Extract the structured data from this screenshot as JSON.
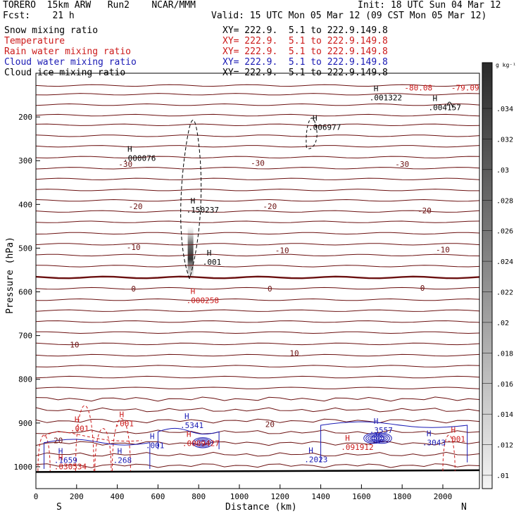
{
  "header": {
    "model_line": "TORERO  15km ARW   Run2    NCAR/MMM",
    "init": "Init: 18 UTC Sun 04 Mar 12",
    "fcst": "Fcst:    21 h",
    "valid": "Valid: 15 UTC Mon 05 Mar 12 (09 CST Mon 05 Mar 12)"
  },
  "legend": [
    {
      "name": "Snow mixing ratio",
      "color": "#000000",
      "xy": "XY= 222.9.  5.1 to 222.9.149.8"
    },
    {
      "name": "Temperature",
      "color": "#cc1a1a",
      "xy": "XY= 222.9.  5.1 to 222.9.149.8"
    },
    {
      "name": "Rain water mixing ratio",
      "color": "#cc1a1a",
      "xy": "XY= 222.9.  5.1 to 222.9.149.8"
    },
    {
      "name": "Cloud water mixing ratio",
      "color": "#1a1ab4",
      "xy": "XY= 222.9.  5.1 to 222.9.149.8"
    },
    {
      "name": "Cloud ice mixing ratio",
      "color": "#000000",
      "xy": "XY= 222.9.  5.1 to 222.9.149.8"
    }
  ],
  "chart_data": {
    "type": "contour",
    "xlabel": "Distance (km)",
    "ylabel": "Pressure (hPa)",
    "xlim": [
      0,
      2180
    ],
    "ylim": [
      1050,
      100
    ],
    "x_ticks": [
      0,
      200,
      400,
      600,
      800,
      1000,
      1200,
      1400,
      1600,
      1800,
      2000
    ],
    "y_ticks": [
      200,
      300,
      400,
      500,
      600,
      700,
      800,
      900,
      1000
    ],
    "x_end_labels": [
      "S",
      "N"
    ],
    "colorbar": {
      "unit": "g kg⁻¹",
      "labels": [
        ".034",
        ".032",
        ".03",
        ".028",
        ".026",
        ".024",
        ".022",
        ".02",
        ".018",
        ".016",
        ".014",
        ".012",
        ".01"
      ]
    },
    "temperature_labels": [
      {
        "text": "-80.08",
        "x": 1880,
        "p": 133,
        "color": "#cc1a1a"
      },
      {
        "text": "-79.09",
        "x": 2110,
        "p": 133,
        "color": "#cc1a1a"
      },
      {
        "text": "-30",
        "x": 440,
        "p": 308,
        "color": "#6b1010"
      },
      {
        "text": "-30",
        "x": 1090,
        "p": 305,
        "color": "#6b1010"
      },
      {
        "text": "-30",
        "x": 1800,
        "p": 308,
        "color": "#6b1010"
      },
      {
        "text": "-20",
        "x": 490,
        "p": 404,
        "color": "#6b1010"
      },
      {
        "text": "-20",
        "x": 1150,
        "p": 404,
        "color": "#6b1010"
      },
      {
        "text": "-20",
        "x": 1910,
        "p": 414,
        "color": "#6b1010"
      },
      {
        "text": "-10",
        "x": 480,
        "p": 498,
        "color": "#6b1010"
      },
      {
        "text": "-10",
        "x": 1210,
        "p": 505,
        "color": "#6b1010"
      },
      {
        "text": "-10",
        "x": 2000,
        "p": 503,
        "color": "#6b1010"
      },
      {
        "text": "0",
        "x": 480,
        "p": 593,
        "color": "#6b1010"
      },
      {
        "text": "0",
        "x": 1150,
        "p": 593,
        "color": "#6b1010"
      },
      {
        "text": "0",
        "x": 1900,
        "p": 591,
        "color": "#6b1010"
      },
      {
        "text": "10",
        "x": 190,
        "p": 721,
        "color": "#6b1010"
      },
      {
        "text": "10",
        "x": 1270,
        "p": 740,
        "color": "#6b1010"
      },
      {
        "text": "20",
        "x": 110,
        "p": 940,
        "color": "#6b1010"
      },
      {
        "text": "20",
        "x": 1150,
        "p": 903,
        "color": "#6b1010"
      }
    ],
    "highs": [
      {
        "value": ".001322",
        "x": 1660,
        "p": 160,
        "color": "#000000"
      },
      {
        "value": ".004157",
        "x": 1950,
        "p": 183,
        "color": "#000000"
      },
      {
        "value": ".006977",
        "x": 1360,
        "p": 228,
        "color": "#000000"
      },
      {
        "value": ".000076",
        "x": 450,
        "p": 299,
        "color": "#000000"
      },
      {
        "value": ".150237",
        "x": 760,
        "p": 417,
        "color": "#000000"
      },
      {
        "value": ".001",
        "x": 840,
        "p": 536,
        "color": "#000000"
      },
      {
        "value": ".000258",
        "x": 760,
        "p": 624,
        "color": "#cc1a1a"
      },
      {
        "value": ".5341",
        "x": 730,
        "p": 910,
        "color": "#1a1ab4"
      },
      {
        "value": ".0009427",
        "x": 740,
        "p": 951,
        "color": "#cc1a1a"
      },
      {
        "value": ".001",
        "x": 190,
        "p": 917,
        "color": "#cc1a1a"
      },
      {
        "value": ".001",
        "x": 410,
        "p": 906,
        "color": "#cc1a1a"
      },
      {
        "value": ".001",
        "x": 560,
        "p": 956,
        "color": "#1a1ab4"
      },
      {
        "value": ".1659",
        "x": 110,
        "p": 990,
        "color": "#1a1ab4"
      },
      {
        "value": ".030534",
        "x": 110,
        "p": 1004,
        "color": "#cc1a1a"
      },
      {
        "value": ".268",
        "x": 400,
        "p": 990,
        "color": "#1a1ab4"
      },
      {
        "value": ".2023",
        "x": 1340,
        "p": 988,
        "color": "#1a1ab4"
      },
      {
        "value": ".091912",
        "x": 1520,
        "p": 960,
        "color": "#cc1a1a"
      },
      {
        "value": ".3557",
        "x": 1660,
        "p": 921,
        "color": "#1a1ab4"
      },
      {
        "value": ".3043",
        "x": 1920,
        "p": 949,
        "color": "#1a1ab4"
      },
      {
        "value": ".001",
        "x": 2040,
        "p": 941,
        "color": "#cc1a1a"
      }
    ],
    "isotherms_p": [
      128,
      148,
      172,
      196,
      218,
      243,
      267,
      292,
      317,
      342,
      367,
      391,
      416,
      440,
      466,
      491,
      516,
      541,
      567,
      592,
      618,
      643,
      668,
      693,
      719,
      745,
      770,
      795,
      820,
      845,
      870,
      895,
      921,
      946,
      972,
      997
    ],
    "zero_isotherm_index": 18
  }
}
